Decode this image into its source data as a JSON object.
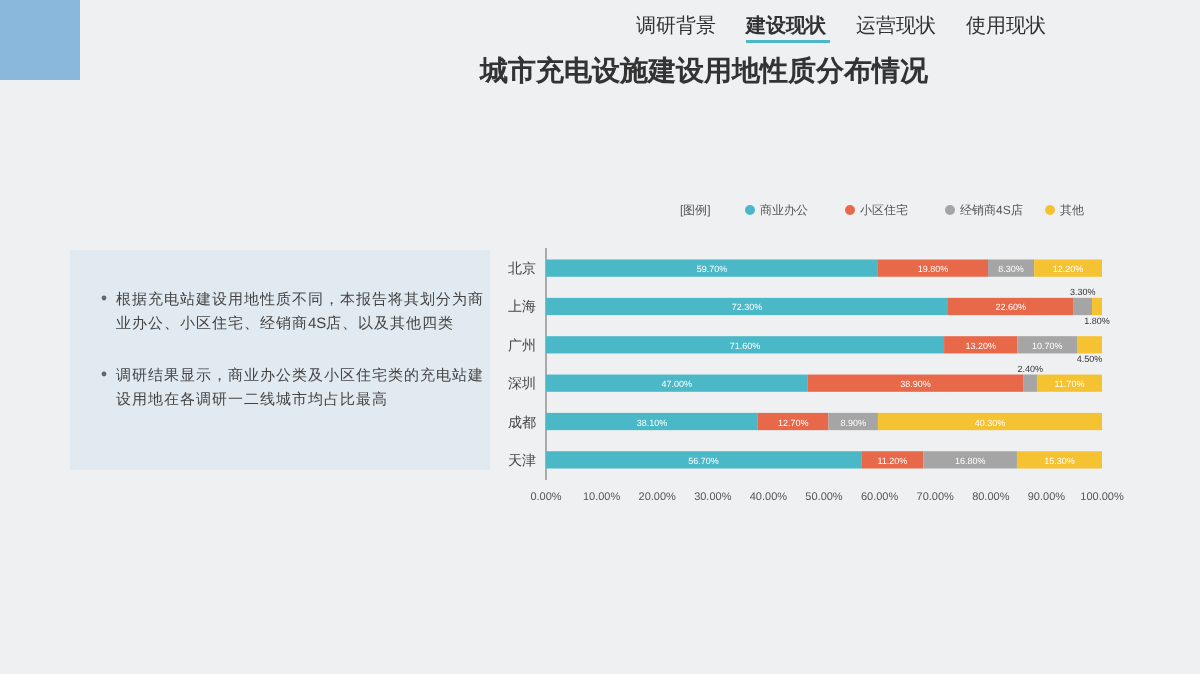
{
  "chart_data": {
    "type": "bar",
    "orientation": "horizontal",
    "stacked": true,
    "title": "城市充电设施建设用地性质分布情况",
    "categories": [
      "北京",
      "上海",
      "广州",
      "深圳",
      "成都",
      "天津"
    ],
    "series": [
      {
        "name": "商业办公",
        "color": "#4bb8c8",
        "values": [
          59.7,
          72.3,
          71.6,
          47.0,
          38.1,
          56.7
        ],
        "value_labels": [
          "59.70%",
          "72.30%",
          "71.60%",
          "47.00%",
          "38.10%",
          "56.70%"
        ]
      },
      {
        "name": "小区住宅",
        "color": "#e8684a",
        "values": [
          19.8,
          22.6,
          13.2,
          38.9,
          12.7,
          11.2
        ],
        "value_labels": [
          "19.80%",
          "22.60%",
          "13.20%",
          "38.90%",
          "12.70%",
          "11.20%"
        ]
      },
      {
        "name": "经销商4S店",
        "color": "#a5a5a5",
        "values": [
          8.3,
          3.3,
          10.7,
          2.4,
          8.9,
          16.8
        ],
        "value_labels": [
          "8.30%",
          "3.30%",
          "10.70%",
          "2.40%",
          "8.90%",
          "16.80%"
        ]
      },
      {
        "name": "其他",
        "color": "#f5c232",
        "values": [
          12.2,
          1.8,
          4.5,
          11.7,
          40.3,
          15.3
        ],
        "value_labels": [
          "12.20%",
          "1.80%",
          "4.50%",
          "11.70%",
          "40.30%",
          "15.30%"
        ]
      }
    ],
    "legend_title": "[图例]",
    "legend": "top",
    "xlim": [
      0,
      100
    ],
    "xticks": [
      {
        "value": 0,
        "label": "0.00%"
      },
      {
        "value": 10,
        "label": "10.00%"
      },
      {
        "value": 20,
        "label": "20.00%"
      },
      {
        "value": 30,
        "label": "30.00%"
      },
      {
        "value": 40,
        "label": "40.00%"
      },
      {
        "value": 50,
        "label": "50.00%"
      },
      {
        "value": 60,
        "label": "60.00%"
      },
      {
        "value": 70,
        "label": "70.00%"
      },
      {
        "value": 80,
        "label": "80.00%"
      },
      {
        "value": 90,
        "label": "90.00%"
      },
      {
        "value": 100,
        "label": "100.00%"
      }
    ],
    "annotations": [
      "调研背景",
      "建设现状",
      "运营现状",
      "使用现状",
      "根据充电站建设用地性质不同，本报告将其划分为商业办公、小区住宅、经销商4S店、以及其他四类",
      "调研结果显示，商业办公类及小区住宅类的充电站建设用地在各调研一二线城市均占比最高"
    ]
  }
}
